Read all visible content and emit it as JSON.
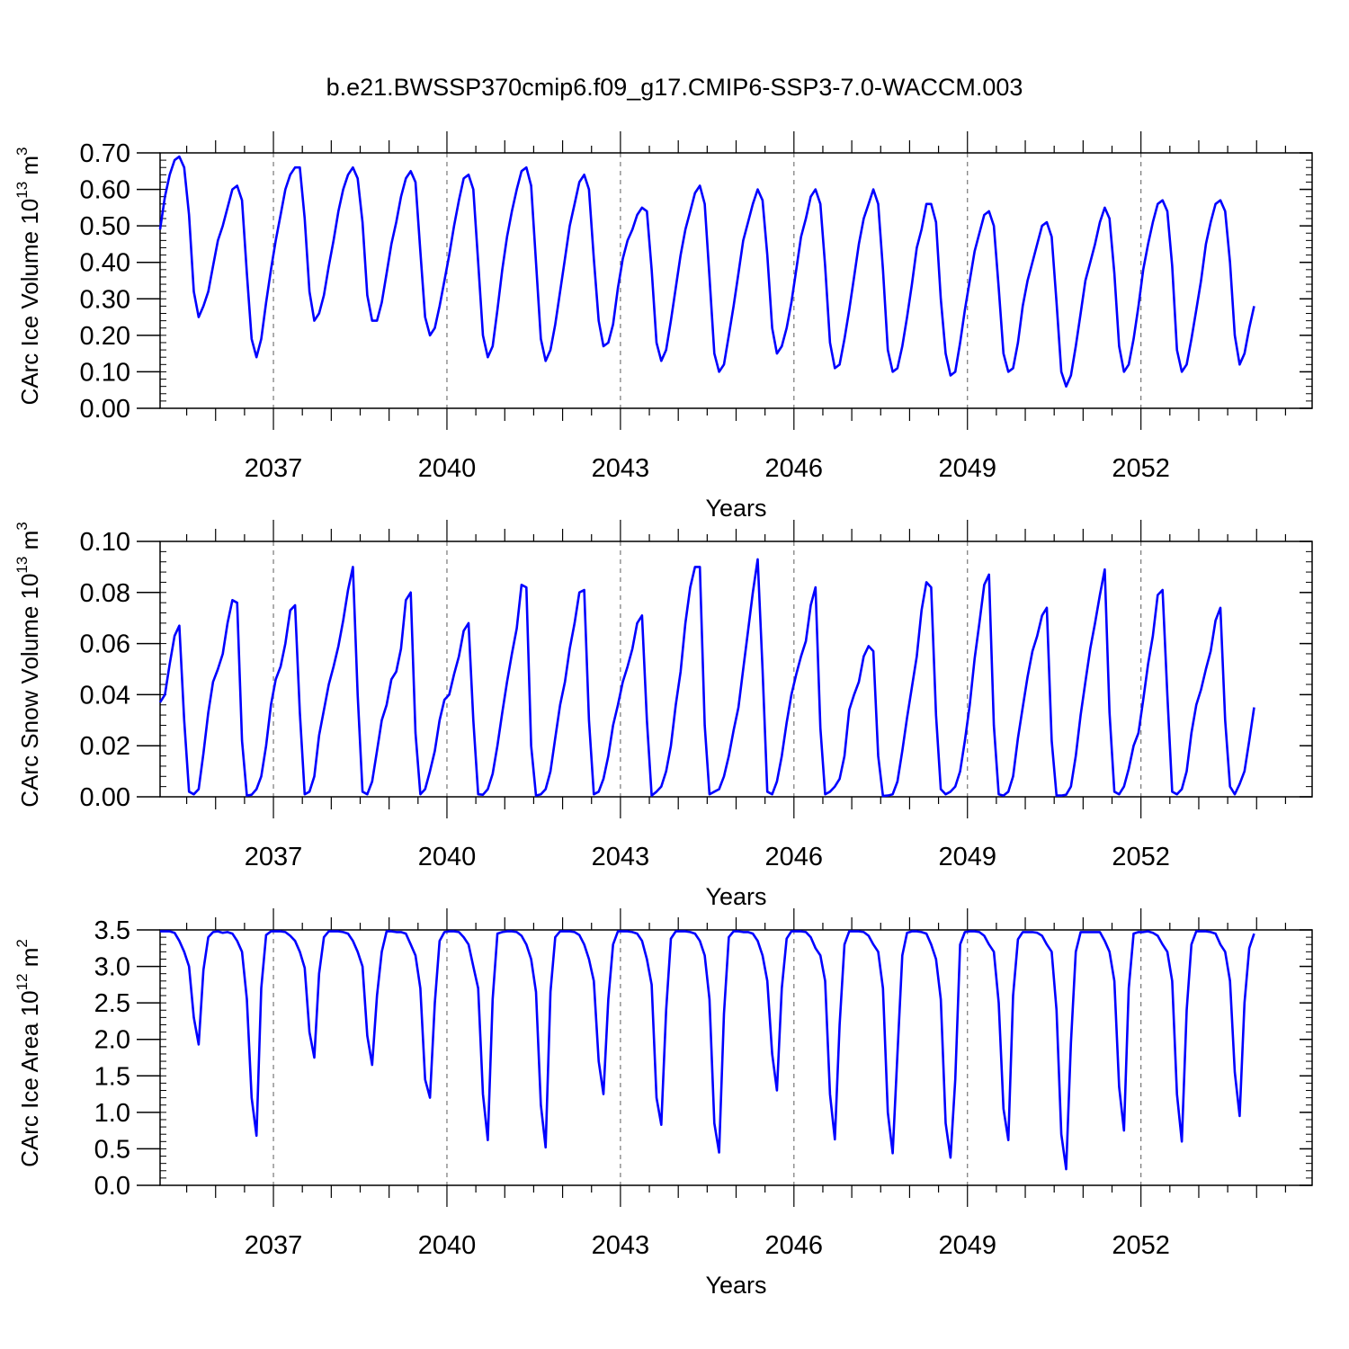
{
  "title": "b.e21.BWSSP370cmip6.f09_g17.CMIP6-SSP3-7.0-WACCM.003",
  "line_color": "#0000ff",
  "chart_data": [
    {
      "type": "line",
      "ylabel_main": "CArc Ice Volume 10",
      "ylabel_sup1": "13",
      "ylabel_mid": " m",
      "ylabel_sup2": "3",
      "xlabel": "Years",
      "xlim": [
        2035.04,
        2054.96
      ],
      "ylim": [
        0,
        0.7
      ],
      "yticks": [
        0.0,
        0.1,
        0.2,
        0.3,
        0.4,
        0.5,
        0.6,
        0.7
      ],
      "ytick_labels": [
        "0.00",
        "0.10",
        "0.20",
        "0.30",
        "0.40",
        "0.50",
        "0.60",
        "0.70"
      ],
      "xticks": [
        2037,
        2040,
        2043,
        2046,
        2049,
        2052
      ],
      "xtick_labels": [
        "2037",
        "2040",
        "2043",
        "2046",
        "2049",
        "2052"
      ],
      "grid": "dashed vertical at x ticks",
      "series": [
        {
          "x_start": 2035.04,
          "x_step": 0.0833333,
          "values": [
            0.49,
            0.58,
            0.64,
            0.68,
            0.69,
            0.66,
            0.53,
            0.32,
            0.25,
            0.28,
            0.32,
            0.39,
            0.46,
            0.5,
            0.55,
            0.6,
            0.61,
            0.57,
            0.37,
            0.19,
            0.14,
            0.19,
            0.29,
            0.38,
            0.46,
            0.53,
            0.6,
            0.64,
            0.66,
            0.66,
            0.52,
            0.32,
            0.24,
            0.26,
            0.31,
            0.39,
            0.46,
            0.54,
            0.6,
            0.64,
            0.66,
            0.63,
            0.51,
            0.31,
            0.24,
            0.24,
            0.29,
            0.37,
            0.45,
            0.51,
            0.58,
            0.63,
            0.65,
            0.62,
            0.43,
            0.25,
            0.2,
            0.22,
            0.28,
            0.35,
            0.42,
            0.5,
            0.57,
            0.63,
            0.64,
            0.6,
            0.4,
            0.2,
            0.14,
            0.17,
            0.27,
            0.38,
            0.47,
            0.54,
            0.6,
            0.65,
            0.66,
            0.61,
            0.4,
            0.19,
            0.13,
            0.16,
            0.23,
            0.32,
            0.41,
            0.5,
            0.56,
            0.62,
            0.64,
            0.6,
            0.41,
            0.24,
            0.17,
            0.18,
            0.23,
            0.33,
            0.41,
            0.46,
            0.49,
            0.53,
            0.55,
            0.54,
            0.38,
            0.18,
            0.13,
            0.16,
            0.24,
            0.33,
            0.42,
            0.49,
            0.54,
            0.59,
            0.61,
            0.56,
            0.36,
            0.15,
            0.1,
            0.12,
            0.2,
            0.28,
            0.37,
            0.46,
            0.51,
            0.56,
            0.6,
            0.57,
            0.42,
            0.22,
            0.15,
            0.17,
            0.22,
            0.29,
            0.38,
            0.47,
            0.52,
            0.58,
            0.6,
            0.56,
            0.39,
            0.18,
            0.11,
            0.12,
            0.19,
            0.27,
            0.36,
            0.45,
            0.52,
            0.56,
            0.6,
            0.56,
            0.38,
            0.16,
            0.1,
            0.11,
            0.17,
            0.25,
            0.34,
            0.44,
            0.49,
            0.56,
            0.56,
            0.51,
            0.3,
            0.15,
            0.09,
            0.1,
            0.18,
            0.27,
            0.35,
            0.43,
            0.48,
            0.53,
            0.54,
            0.5,
            0.33,
            0.15,
            0.1,
            0.11,
            0.18,
            0.28,
            0.35,
            0.4,
            0.45,
            0.5,
            0.51,
            0.47,
            0.29,
            0.1,
            0.06,
            0.09,
            0.17,
            0.26,
            0.35,
            0.4,
            0.45,
            0.51,
            0.55,
            0.52,
            0.37,
            0.17,
            0.1,
            0.12,
            0.19,
            0.28,
            0.38,
            0.45,
            0.51,
            0.56,
            0.57,
            0.54,
            0.39,
            0.16,
            0.1,
            0.12,
            0.19,
            0.27,
            0.35,
            0.45,
            0.51,
            0.56,
            0.57,
            0.54,
            0.4,
            0.2,
            0.12,
            0.15,
            0.22,
            0.28
          ]
        }
      ]
    },
    {
      "type": "line",
      "ylabel_main": "CArc Snow Volume 10",
      "ylabel_sup1": "13",
      "ylabel_mid": " m",
      "ylabel_sup2": "3",
      "xlabel": "Years",
      "xlim": [
        2035.04,
        2054.96
      ],
      "ylim": [
        0,
        0.1
      ],
      "yticks": [
        0.0,
        0.02,
        0.04,
        0.06,
        0.08,
        0.1
      ],
      "ytick_labels": [
        "0.00",
        "0.02",
        "0.04",
        "0.06",
        "0.08",
        "0.10"
      ],
      "xticks": [
        2037,
        2040,
        2043,
        2046,
        2049,
        2052
      ],
      "xtick_labels": [
        "2037",
        "2040",
        "2043",
        "2046",
        "2049",
        "2052"
      ],
      "grid": "dashed vertical at x ticks",
      "series": [
        {
          "x_start": 2035.04,
          "x_step": 0.0833333,
          "values": [
            0.037,
            0.04,
            0.052,
            0.063,
            0.067,
            0.03,
            0.002,
            0.001,
            0.003,
            0.017,
            0.033,
            0.045,
            0.05,
            0.056,
            0.068,
            0.077,
            0.076,
            0.022,
            0.0005,
            0.0008,
            0.003,
            0.008,
            0.02,
            0.036,
            0.046,
            0.051,
            0.06,
            0.073,
            0.075,
            0.033,
            0.001,
            0.002,
            0.008,
            0.024,
            0.034,
            0.044,
            0.051,
            0.059,
            0.069,
            0.081,
            0.09,
            0.04,
            0.002,
            0.001,
            0.006,
            0.018,
            0.03,
            0.036,
            0.046,
            0.049,
            0.058,
            0.077,
            0.08,
            0.025,
            0.001,
            0.003,
            0.01,
            0.018,
            0.03,
            0.038,
            0.04,
            0.048,
            0.055,
            0.065,
            0.068,
            0.03,
            0.001,
            0.0008,
            0.003,
            0.009,
            0.02,
            0.033,
            0.045,
            0.056,
            0.066,
            0.083,
            0.082,
            0.02,
            0.0005,
            0.001,
            0.003,
            0.01,
            0.023,
            0.036,
            0.045,
            0.058,
            0.068,
            0.08,
            0.081,
            0.03,
            0.001,
            0.002,
            0.007,
            0.016,
            0.028,
            0.036,
            0.045,
            0.051,
            0.058,
            0.068,
            0.071,
            0.03,
            0.0005,
            0.002,
            0.004,
            0.01,
            0.02,
            0.036,
            0.049,
            0.068,
            0.082,
            0.09,
            0.09,
            0.028,
            0.001,
            0.002,
            0.003,
            0.008,
            0.016,
            0.026,
            0.035,
            0.05,
            0.065,
            0.08,
            0.093,
            0.05,
            0.002,
            0.001,
            0.006,
            0.016,
            0.029,
            0.04,
            0.048,
            0.055,
            0.061,
            0.075,
            0.082,
            0.027,
            0.001,
            0.002,
            0.004,
            0.007,
            0.016,
            0.034,
            0.04,
            0.045,
            0.055,
            0.059,
            0.057,
            0.016,
            0.0003,
            0.0005,
            0.001,
            0.006,
            0.018,
            0.031,
            0.043,
            0.055,
            0.073,
            0.084,
            0.082,
            0.032,
            0.003,
            0.001,
            0.002,
            0.004,
            0.01,
            0.022,
            0.036,
            0.054,
            0.068,
            0.083,
            0.087,
            0.028,
            0.001,
            0.0005,
            0.002,
            0.008,
            0.023,
            0.035,
            0.047,
            0.057,
            0.063,
            0.071,
            0.074,
            0.022,
            0.0005,
            0.0005,
            0.0008,
            0.004,
            0.016,
            0.032,
            0.045,
            0.058,
            0.068,
            0.079,
            0.089,
            0.033,
            0.002,
            0.001,
            0.004,
            0.011,
            0.02,
            0.025,
            0.038,
            0.052,
            0.063,
            0.079,
            0.081,
            0.04,
            0.002,
            0.001,
            0.003,
            0.01,
            0.025,
            0.036,
            0.042,
            0.05,
            0.057,
            0.069,
            0.074,
            0.03,
            0.004,
            0.001,
            0.005,
            0.01,
            0.022,
            0.035
          ]
        }
      ]
    },
    {
      "type": "line",
      "ylabel_main": "CArc Ice Area 10",
      "ylabel_sup1": "12",
      "ylabel_mid": " m",
      "ylabel_sup2": "2",
      "xlabel": "Years",
      "xlim": [
        2035.04,
        2054.96
      ],
      "ylim": [
        0,
        3.5
      ],
      "yticks": [
        0.0,
        0.5,
        1.0,
        1.5,
        2.0,
        2.5,
        3.0,
        3.5
      ],
      "ytick_labels": [
        "0.0",
        "0.5",
        "1.0",
        "1.5",
        "2.0",
        "2.5",
        "3.0",
        "3.5"
      ],
      "xticks": [
        2037,
        2040,
        2043,
        2046,
        2049,
        2052
      ],
      "xtick_labels": [
        "2037",
        "2040",
        "2043",
        "2046",
        "2049",
        "2052"
      ],
      "grid": "dashed vertical at x ticks",
      "series": [
        {
          "x_start": 2035.04,
          "x_step": 0.0833333,
          "values": [
            3.48,
            3.48,
            3.48,
            3.46,
            3.35,
            3.2,
            3.0,
            2.3,
            1.93,
            2.95,
            3.4,
            3.47,
            3.48,
            3.46,
            3.47,
            3.45,
            3.35,
            3.2,
            2.55,
            1.2,
            0.68,
            2.7,
            3.43,
            3.48,
            3.48,
            3.48,
            3.47,
            3.42,
            3.35,
            3.2,
            2.98,
            2.1,
            1.75,
            2.9,
            3.4,
            3.48,
            3.48,
            3.48,
            3.47,
            3.45,
            3.35,
            3.2,
            3.0,
            2.05,
            1.65,
            2.6,
            3.2,
            3.48,
            3.48,
            3.47,
            3.47,
            3.45,
            3.3,
            3.15,
            2.7,
            1.45,
            1.2,
            2.5,
            3.35,
            3.47,
            3.48,
            3.48,
            3.47,
            3.4,
            3.3,
            3.0,
            2.7,
            1.25,
            0.62,
            2.55,
            3.45,
            3.47,
            3.48,
            3.48,
            3.47,
            3.42,
            3.3,
            3.1,
            2.65,
            1.1,
            0.52,
            2.65,
            3.4,
            3.48,
            3.48,
            3.48,
            3.47,
            3.43,
            3.3,
            3.1,
            2.8,
            1.7,
            1.25,
            2.55,
            3.3,
            3.48,
            3.48,
            3.48,
            3.47,
            3.45,
            3.35,
            3.1,
            2.75,
            1.2,
            0.83,
            2.4,
            3.38,
            3.48,
            3.48,
            3.48,
            3.47,
            3.45,
            3.35,
            3.15,
            2.55,
            0.85,
            0.45,
            2.35,
            3.4,
            3.48,
            3.48,
            3.47,
            3.47,
            3.45,
            3.35,
            3.15,
            2.8,
            1.8,
            1.3,
            2.7,
            3.38,
            3.48,
            3.48,
            3.48,
            3.47,
            3.4,
            3.25,
            3.15,
            2.8,
            1.25,
            0.63,
            2.2,
            3.3,
            3.48,
            3.48,
            3.48,
            3.47,
            3.42,
            3.3,
            3.2,
            2.7,
            1.0,
            0.44,
            1.8,
            3.15,
            3.46,
            3.48,
            3.48,
            3.47,
            3.45,
            3.3,
            3.1,
            2.55,
            0.85,
            0.38,
            1.45,
            3.3,
            3.47,
            3.48,
            3.48,
            3.47,
            3.42,
            3.3,
            3.2,
            2.5,
            1.05,
            0.62,
            2.6,
            3.37,
            3.47,
            3.47,
            3.47,
            3.46,
            3.42,
            3.3,
            3.2,
            2.4,
            0.7,
            0.22,
            1.95,
            3.2,
            3.47,
            3.47,
            3.47,
            3.47,
            3.47,
            3.35,
            3.2,
            2.8,
            1.35,
            0.75,
            2.7,
            3.45,
            3.47,
            3.47,
            3.48,
            3.46,
            3.42,
            3.3,
            3.2,
            2.8,
            1.25,
            0.6,
            2.4,
            3.3,
            3.48,
            3.48,
            3.48,
            3.47,
            3.45,
            3.3,
            3.2,
            2.8,
            1.55,
            0.95,
            2.5,
            3.25,
            3.45
          ]
        }
      ]
    }
  ]
}
